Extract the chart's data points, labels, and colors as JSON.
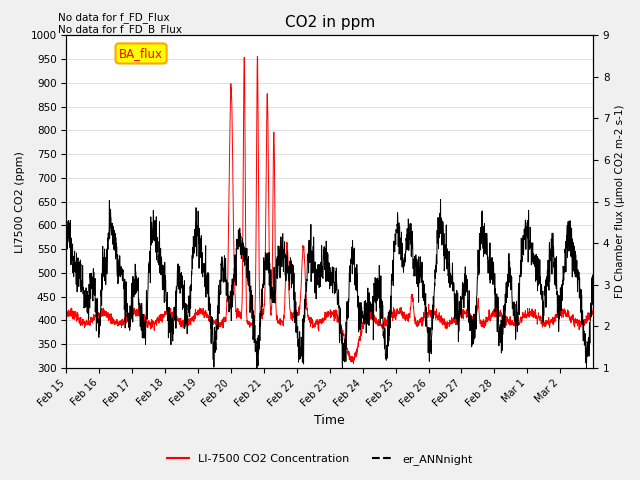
{
  "title": "CO2 in ppm",
  "xlabel": "Time",
  "ylabel_left": "LI7500 CO2 (ppm)",
  "ylabel_right": "FD Chamber flux (μmol CO2 m-2 s-1)",
  "text_topleft": "No data for f_FD_Flux\nNo data for f_FD_B_Flux",
  "ba_flux_label": "BA_flux",
  "ylim_left": [
    300,
    1000
  ],
  "ylim_right": [
    1.0,
    9.0
  ],
  "yticks_left": [
    300,
    350,
    400,
    450,
    500,
    550,
    600,
    650,
    700,
    750,
    800,
    850,
    900,
    950,
    1000
  ],
  "yticks_right": [
    1.0,
    2.0,
    3.0,
    4.0,
    5.0,
    6.0,
    7.0,
    8.0,
    9.0
  ],
  "xtick_labels": [
    "Feb 15",
    "Feb 16",
    "Feb 17",
    "Feb 18",
    "Feb 19",
    "Feb 20",
    "Feb 21",
    "Feb 22",
    "Feb 23",
    "Feb 24",
    "Feb 25",
    "Feb 26",
    "Feb 27",
    "Feb 28",
    "Mar 1",
    "Mar 2"
  ],
  "legend_red_label": "LI-7500 CO2 Concentration",
  "legend_black_label": "er_ANNnight",
  "background_color": "#f0f0f0",
  "plot_bg_color": "#ffffff",
  "grid_color": "#d8d8d8"
}
